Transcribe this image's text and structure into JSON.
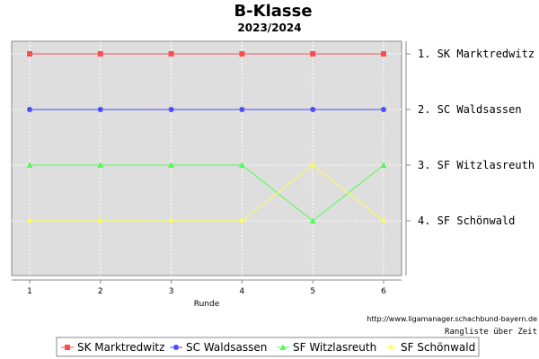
{
  "chart_data": {
    "type": "line",
    "title": "B-Klasse",
    "subtitle": "2023/2024",
    "xlabel": "Runde",
    "x": [
      1,
      2,
      3,
      4,
      5,
      6
    ],
    "ylim": [
      1,
      5
    ],
    "y_inverted": true,
    "grid": true,
    "legend_position": "bottom",
    "series": [
      {
        "name": "SK Marktredwitz",
        "values": [
          1,
          1,
          1,
          1,
          1,
          1
        ],
        "color": "#ff4d4d",
        "marker": "square"
      },
      {
        "name": "SC Waldsassen",
        "values": [
          2,
          2,
          2,
          2,
          2,
          2
        ],
        "color": "#4d4dff",
        "marker": "circle"
      },
      {
        "name": "SF Witzlasreuth",
        "values": [
          3,
          3,
          3,
          3,
          4,
          3
        ],
        "color": "#4dff4d",
        "marker": "triangle"
      },
      {
        "name": "SF Schönwald",
        "values": [
          4,
          4,
          4,
          4,
          3,
          4
        ],
        "color": "#ffff4d",
        "marker": "diamond"
      }
    ],
    "rank_labels": [
      "1. SK Marktredwitz",
      "2. SC Waldsassen",
      "3. SF Witzlasreuth",
      "4. SF Schönwald"
    ],
    "source_url": "http://www.ligamanager.schachbund-bayern.de",
    "note": "Rangliste über Zeit"
  }
}
